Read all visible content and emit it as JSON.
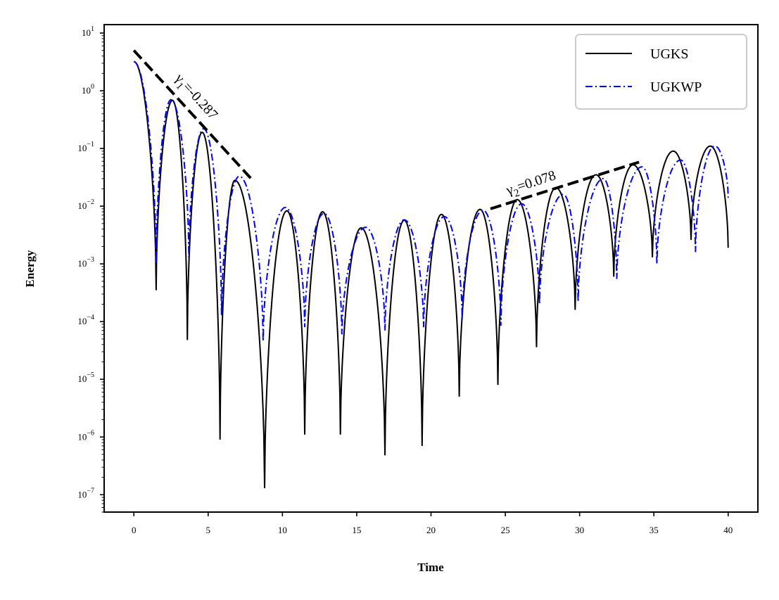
{
  "chart_data": {
    "type": "line",
    "title": "",
    "xlabel": "Time",
    "ylabel": "Energy",
    "xscale": "linear",
    "yscale": "log",
    "xlim": [
      -2,
      42
    ],
    "ylim": [
      5e-08,
      14
    ],
    "xticks": [
      0,
      5,
      10,
      15,
      20,
      25,
      30,
      35,
      40
    ],
    "xtick_labels": [
      "0",
      "5",
      "10",
      "15",
      "20",
      "25",
      "30",
      "35",
      "40"
    ],
    "yticks": [
      1e-07,
      1e-06,
      1e-05,
      0.0001,
      0.001,
      0.01,
      0.1,
      1,
      10
    ],
    "ytick_labels": [
      {
        "base": "10",
        "exp": "−7"
      },
      {
        "base": "10",
        "exp": "−6"
      },
      {
        "base": "10",
        "exp": "−5"
      },
      {
        "base": "10",
        "exp": "−4"
      },
      {
        "base": "10",
        "exp": "−3"
      },
      {
        "base": "10",
        "exp": "−2"
      },
      {
        "base": "10",
        "exp": "−1"
      },
      {
        "base": "10",
        "exp": "0"
      },
      {
        "base": "10",
        "exp": "1"
      }
    ],
    "legend": {
      "position": "top-right",
      "entries": [
        "UGKS",
        "UGKWP"
      ]
    },
    "grid": false,
    "series": [
      {
        "name": "UGKS",
        "color": "#000000",
        "style": "solid",
        "minima": [
          {
            "x": 1.5,
            "y": 0.00035
          },
          {
            "x": 3.6,
            "y": 4.8e-05
          },
          {
            "x": 5.8,
            "y": 9e-07
          },
          {
            "x": 8.8,
            "y": 1.3e-07
          },
          {
            "x": 11.5,
            "y": 1.1e-06
          },
          {
            "x": 13.9,
            "y": 1.1e-06
          },
          {
            "x": 16.9,
            "y": 4.8e-07
          },
          {
            "x": 19.4,
            "y": 7e-07
          },
          {
            "x": 21.9,
            "y": 5e-06
          },
          {
            "x": 24.5,
            "y": 8e-06
          },
          {
            "x": 27.1,
            "y": 3.6e-05
          },
          {
            "x": 29.7,
            "y": 0.00016
          },
          {
            "x": 32.3,
            "y": 0.0006
          },
          {
            "x": 34.9,
            "y": 0.0013
          },
          {
            "x": 37.5,
            "y": 0.0026
          }
        ],
        "maxima": [
          {
            "x": 0,
            "y": 3.2
          },
          {
            "x": 2.6,
            "y": 0.68
          },
          {
            "x": 4.6,
            "y": 0.19
          },
          {
            "x": 6.8,
            "y": 0.028
          },
          {
            "x": 10.3,
            "y": 0.0083
          },
          {
            "x": 12.7,
            "y": 0.008
          },
          {
            "x": 15.3,
            "y": 0.0042
          },
          {
            "x": 18.2,
            "y": 0.0057
          },
          {
            "x": 20.7,
            "y": 0.0072
          },
          {
            "x": 23.3,
            "y": 0.0088
          },
          {
            "x": 25.8,
            "y": 0.013
          },
          {
            "x": 28.4,
            "y": 0.021
          },
          {
            "x": 31.1,
            "y": 0.035
          },
          {
            "x": 33.6,
            "y": 0.052
          },
          {
            "x": 36.3,
            "y": 0.09
          },
          {
            "x": 38.8,
            "y": 0.11
          }
        ],
        "end": {
          "x": 40,
          "y": 0.0019
        }
      },
      {
        "name": "UGKWP",
        "color": "#0000ff",
        "style": "dashdot",
        "minima": [
          {
            "x": 1.5,
            "y": 0.001
          },
          {
            "x": 3.7,
            "y": 0.0013
          },
          {
            "x": 5.9,
            "y": 0.00013
          },
          {
            "x": 8.7,
            "y": 4.5e-05
          },
          {
            "x": 11.5,
            "y": 8e-05
          },
          {
            "x": 14.0,
            "y": 6e-05
          },
          {
            "x": 16.9,
            "y": 7e-05
          },
          {
            "x": 19.5,
            "y": 8e-05
          },
          {
            "x": 22.1,
            "y": 0.00011
          },
          {
            "x": 24.7,
            "y": 8.5e-05
          },
          {
            "x": 27.3,
            "y": 0.0002
          },
          {
            "x": 29.9,
            "y": 0.00022
          },
          {
            "x": 32.5,
            "y": 0.00055
          },
          {
            "x": 35.2,
            "y": 0.001
          },
          {
            "x": 37.8,
            "y": 0.0016
          }
        ],
        "maxima": [
          {
            "x": 0,
            "y": 3.2
          },
          {
            "x": 2.5,
            "y": 0.7
          },
          {
            "x": 4.7,
            "y": 0.22
          },
          {
            "x": 7.1,
            "y": 0.033
          },
          {
            "x": 10.2,
            "y": 0.0095
          },
          {
            "x": 12.8,
            "y": 0.0075
          },
          {
            "x": 15.6,
            "y": 0.0043
          },
          {
            "x": 18.2,
            "y": 0.0058
          },
          {
            "x": 20.9,
            "y": 0.0066
          },
          {
            "x": 23.5,
            "y": 0.0085
          },
          {
            "x": 26.1,
            "y": 0.011
          },
          {
            "x": 28.9,
            "y": 0.016
          },
          {
            "x": 31.6,
            "y": 0.03
          },
          {
            "x": 34.2,
            "y": 0.048
          },
          {
            "x": 36.8,
            "y": 0.063
          },
          {
            "x": 39.1,
            "y": 0.11
          }
        ],
        "end": {
          "x": 40,
          "y": 0.014
        }
      }
    ],
    "fit_lines": [
      {
        "label": "γ1=-0.287",
        "symbol": "γ",
        "sub": "1",
        "value": "=-0.287",
        "from": {
          "x": 0,
          "y": 5.0
        },
        "to": {
          "x": 8,
          "y": 0.028
        },
        "color": "#000000",
        "style": "dashed"
      },
      {
        "label": "γ2=0.078",
        "symbol": "γ",
        "sub": "2",
        "value": "=0.078",
        "from": {
          "x": 24,
          "y": 0.009
        },
        "to": {
          "x": 34,
          "y": 0.058
        },
        "color": "#000000",
        "style": "dashed"
      }
    ]
  }
}
